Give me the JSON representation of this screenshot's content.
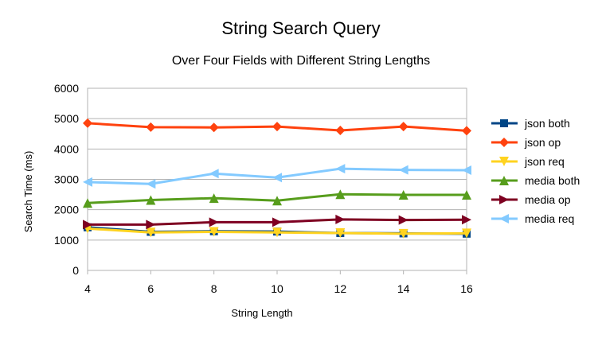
{
  "chart_data": {
    "type": "line",
    "title": "String Search Query",
    "subtitle": "Over Four Fields with Different String Lengths",
    "xlabel": "String Length",
    "ylabel": "Search Time (ms)",
    "x": [
      4,
      6,
      8,
      10,
      12,
      14,
      16
    ],
    "x_ticks": [
      "4",
      "6",
      "8",
      "10",
      "12",
      "14",
      "16"
    ],
    "y_ticks": [
      "0",
      "1000",
      "2000",
      "3000",
      "4000",
      "5000",
      "6000"
    ],
    "ylim": [
      0,
      6000
    ],
    "grid": true,
    "legend_position": "right",
    "series": [
      {
        "name": "json both",
        "color": "#004586",
        "marker": "square",
        "values": [
          1420,
          1270,
          1290,
          1280,
          1230,
          1220,
          1210
        ]
      },
      {
        "name": "json op",
        "color": "#ff420e",
        "marker": "diamond",
        "values": [
          4850,
          4720,
          4710,
          4740,
          4610,
          4740,
          4600
        ]
      },
      {
        "name": "json req",
        "color": "#ffd320",
        "marker": "triangle-down",
        "values": [
          1380,
          1250,
          1270,
          1250,
          1230,
          1210,
          1220
        ]
      },
      {
        "name": "media both",
        "color": "#579d1c",
        "marker": "triangle-up",
        "values": [
          2220,
          2320,
          2380,
          2300,
          2510,
          2490,
          2490
        ]
      },
      {
        "name": "media op",
        "color": "#7e0021",
        "marker": "triangle-right",
        "values": [
          1510,
          1510,
          1590,
          1590,
          1680,
          1660,
          1670
        ]
      },
      {
        "name": "media req",
        "color": "#83caff",
        "marker": "triangle-left",
        "values": [
          2910,
          2850,
          3190,
          3060,
          3350,
          3310,
          3300
        ]
      }
    ]
  }
}
